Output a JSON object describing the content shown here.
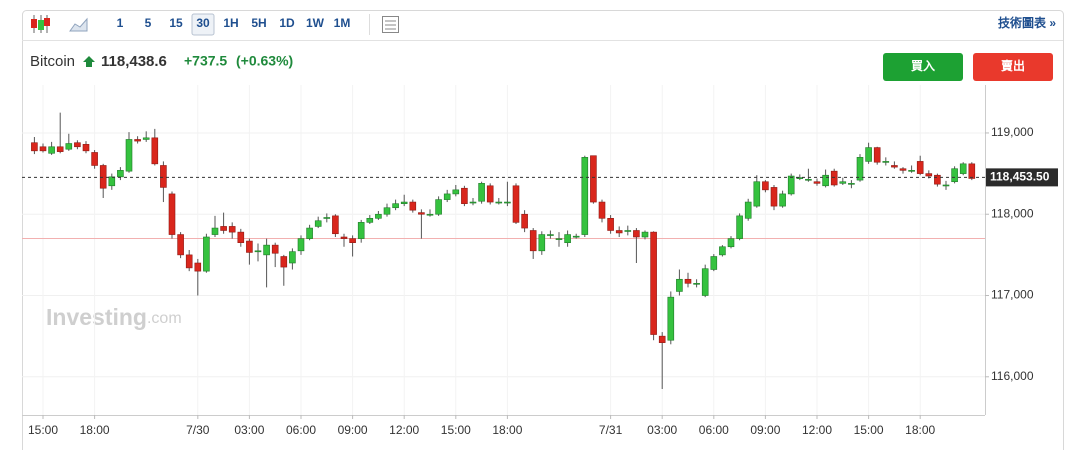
{
  "toolbar": {
    "intervals": [
      "1",
      "5",
      "15",
      "30",
      "1H",
      "5H",
      "1D",
      "1W",
      "1M"
    ],
    "active": "30",
    "tech_chart": "技術圖表 »"
  },
  "header": {
    "instrument": "Bitcoin",
    "price": "118,438.6",
    "change": "+737.5",
    "change_pct": "(+0.63%)"
  },
  "buttons": {
    "buy": "買入",
    "sell": "賣出"
  },
  "watermark": {
    "brand": "Investing",
    "suffix": ".com"
  },
  "chart_data": {
    "type": "candlestick",
    "categories": [
      null,
      "15:00",
      null,
      null,
      null,
      null,
      null,
      "18:00",
      null,
      null,
      null,
      null,
      null,
      null,
      null,
      null,
      null,
      null,
      null,
      "7/30",
      null,
      null,
      null,
      null,
      null,
      "03:00",
      null,
      null,
      null,
      null,
      null,
      "06:00",
      null,
      null,
      null,
      null,
      null,
      "09:00",
      null,
      null,
      null,
      null,
      null,
      "12:00",
      null,
      null,
      null,
      null,
      null,
      "15:00",
      null,
      null,
      null,
      null,
      null,
      "18:00",
      null,
      null,
      null,
      null,
      null,
      null,
      null,
      null,
      null,
      null,
      null,
      "7/31",
      null,
      null,
      null,
      null,
      null,
      "03:00",
      null,
      null,
      null,
      null,
      null,
      "06:00",
      null,
      null,
      null,
      null,
      null,
      "09:00",
      null,
      null,
      null,
      null,
      null,
      "12:00",
      null,
      null,
      null,
      null,
      null,
      "15:00",
      null,
      null,
      null,
      null,
      null,
      "18:00",
      null,
      null,
      null,
      null,
      null,
      null
    ],
    "open": [
      118880,
      118830,
      118750,
      118830,
      118800,
      118880,
      118860,
      118760,
      118600,
      118350,
      118460,
      118530,
      118920,
      118920,
      118940,
      118600,
      118250,
      117750,
      117500,
      117400,
      117300,
      117750,
      117850,
      117850,
      117780,
      117670,
      117550,
      117500,
      117620,
      117480,
      117400,
      117550,
      117700,
      117850,
      117950,
      117980,
      117720,
      117700,
      117700,
      117900,
      117950,
      118000,
      118080,
      118130,
      118150,
      118020,
      118000,
      118000,
      118180,
      118250,
      118320,
      118150,
      118160,
      118350,
      118150,
      118150,
      118350,
      118000,
      117800,
      117550,
      117750,
      117700,
      117650,
      117730,
      117750,
      118720,
      118150,
      117950,
      117800,
      117800,
      117800,
      117720,
      117780,
      116500,
      116450,
      117050,
      117200,
      117150,
      117000,
      117320,
      117500,
      117600,
      117700,
      117950,
      118100,
      118400,
      118330,
      118100,
      118250,
      118450,
      118430,
      118400,
      118350,
      118530,
      118380,
      118370,
      118420,
      118650,
      118820,
      118640,
      118600,
      118560,
      118540,
      118650,
      118500,
      118480,
      118360,
      118400,
      118500,
      118620
    ],
    "high": [
      118950,
      118870,
      118890,
      119250,
      118990,
      118910,
      118900,
      118790,
      118620,
      118500,
      118580,
      119010,
      118960,
      119020,
      119050,
      118650,
      118280,
      117780,
      117560,
      117450,
      117760,
      117980,
      118020,
      117900,
      117820,
      117700,
      117640,
      117700,
      117650,
      117500,
      117580,
      117740,
      117870,
      117970,
      118010,
      118000,
      117760,
      117740,
      117930,
      117990,
      118040,
      118130,
      118180,
      118240,
      118180,
      118060,
      118060,
      118220,
      118300,
      118360,
      118350,
      118200,
      118400,
      118380,
      118200,
      118400,
      118380,
      118050,
      117830,
      117790,
      117800,
      117780,
      117800,
      117760,
      118720,
      118720,
      118180,
      117990,
      117850,
      117860,
      117830,
      117800,
      117790,
      116550,
      117050,
      117320,
      117280,
      117200,
      117380,
      117510,
      117620,
      117730,
      118010,
      118190,
      118480,
      118420,
      118360,
      118290,
      118500,
      118490,
      118560,
      118440,
      118550,
      118560,
      118450,
      118420,
      118740,
      118880,
      118830,
      118700,
      118650,
      118580,
      118600,
      118720,
      118540,
      118500,
      118410,
      118590,
      118640,
      118640
    ],
    "low": [
      118740,
      118760,
      118730,
      118750,
      118780,
      118800,
      118750,
      118560,
      118200,
      118300,
      118420,
      118510,
      118870,
      118890,
      118600,
      118150,
      117700,
      117460,
      117300,
      117000,
      117280,
      117720,
      117760,
      117700,
      117600,
      117380,
      117420,
      117100,
      117350,
      117120,
      117320,
      117500,
      117680,
      117830,
      117900,
      117720,
      117600,
      117480,
      117650,
      117880,
      117930,
      117970,
      118050,
      118100,
      118020,
      117700,
      117970,
      117980,
      118150,
      118220,
      118100,
      118110,
      118130,
      118120,
      118120,
      118100,
      117880,
      117780,
      117450,
      117500,
      117700,
      117600,
      117600,
      117700,
      117720,
      118130,
      117900,
      117760,
      117720,
      117740,
      117400,
      117690,
      116450,
      115850,
      116400,
      117000,
      117100,
      117100,
      116980,
      117300,
      117480,
      117580,
      117680,
      117920,
      118080,
      118270,
      118050,
      118080,
      118230,
      118420,
      118400,
      118350,
      118330,
      118340,
      118360,
      118320,
      118400,
      118620,
      118610,
      118600,
      118560,
      118500,
      118510,
      118480,
      118440,
      118340,
      118300,
      118380,
      118480,
      118420
    ],
    "close": [
      118780,
      118780,
      118830,
      118770,
      118870,
      118830,
      118780,
      118600,
      118320,
      118460,
      118540,
      118920,
      118900,
      118940,
      118620,
      118330,
      117750,
      117500,
      117340,
      117300,
      117720,
      117830,
      117800,
      117780,
      117650,
      117530,
      117550,
      117620,
      117520,
      117350,
      117540,
      117700,
      117830,
      117920,
      117960,
      117760,
      117700,
      117650,
      117900,
      117950,
      118000,
      118080,
      118130,
      118150,
      118050,
      118000,
      118000,
      118180,
      118250,
      118300,
      118130,
      118150,
      118380,
      118150,
      118150,
      118150,
      117900,
      117830,
      117550,
      117750,
      117750,
      117700,
      117750,
      117730,
      118700,
      118150,
      117950,
      117800,
      117770,
      117800,
      117720,
      117780,
      116520,
      116420,
      116980,
      117200,
      117150,
      117150,
      117330,
      117480,
      117600,
      117700,
      117980,
      118150,
      118400,
      118300,
      118100,
      118250,
      118470,
      118450,
      118430,
      118380,
      118480,
      118360,
      118400,
      118380,
      118700,
      118820,
      118640,
      118650,
      118580,
      118540,
      118540,
      118500,
      118470,
      118370,
      118360,
      118560,
      118620,
      118440
    ],
    "up_color": "#35c23f",
    "down_color": "#d9261c",
    "ylim": [
      115530,
      119590
    ],
    "yticks": [
      {
        "value": 116000,
        "label": "116,000"
      },
      {
        "value": 117000,
        "label": "117,000"
      },
      {
        "value": 118000,
        "label": "118,000"
      },
      {
        "value": 119000,
        "label": "119,000"
      }
    ],
    "last_price": {
      "value": 118453.5,
      "label": "118,453.50"
    },
    "reference_line": 117701.1,
    "grid": true
  }
}
